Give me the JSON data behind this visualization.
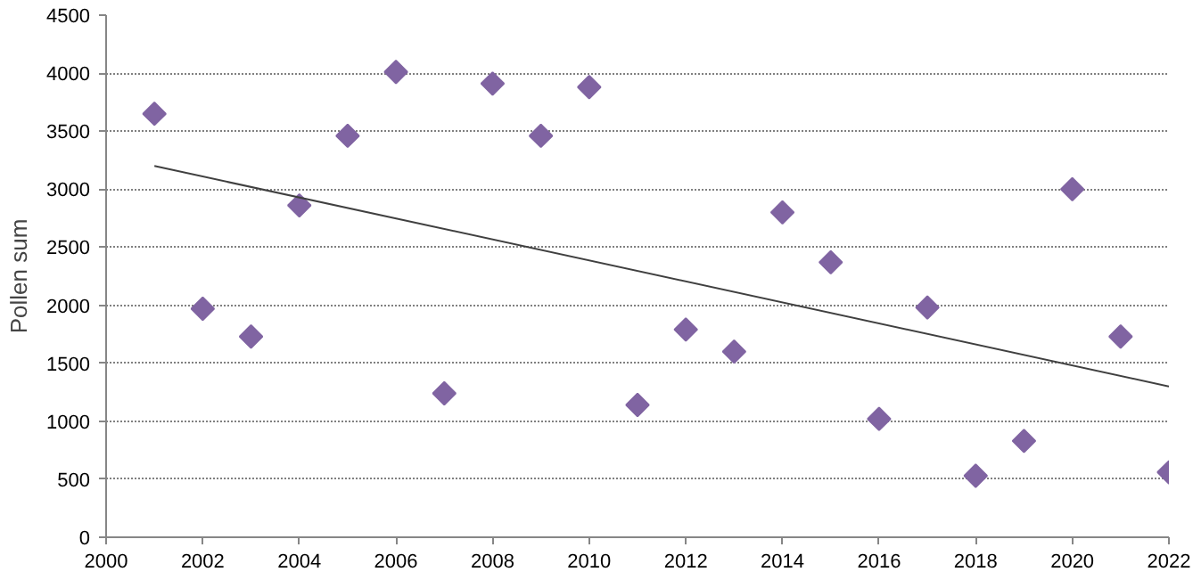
{
  "chart_data": {
    "type": "scatter",
    "ylabel": "Pollen sum",
    "marker": "diamond",
    "grid": "y",
    "xlim": [
      2000,
      2022
    ],
    "xticks": [
      2000,
      2002,
      2004,
      2006,
      2008,
      2010,
      2012,
      2014,
      2016,
      2018,
      2020,
      2022
    ],
    "ylim": [
      0,
      4500
    ],
    "yticks": [
      0,
      500,
      1000,
      1500,
      2000,
      2500,
      3000,
      3500,
      4000,
      4500
    ],
    "series": [
      {
        "color": "#8064a2",
        "x": [
          2001,
          2002,
          2003,
          2004,
          2005,
          2006,
          2007,
          2008,
          2009,
          2010,
          2011,
          2012,
          2013,
          2014,
          2015,
          2016,
          2017,
          2018,
          2019,
          2020,
          2021,
          2022
        ],
        "values": [
          3650,
          1970,
          1730,
          2860,
          3460,
          4010,
          1240,
          3910,
          3460,
          3880,
          1140,
          1790,
          1600,
          2800,
          2370,
          1020,
          1980,
          530,
          830,
          3000,
          1730,
          560
        ]
      },
      {
        "type": "line",
        "color": "#404040",
        "marker": "none",
        "x": [
          2001,
          2022
        ],
        "values": [
          3200,
          1300
        ]
      }
    ]
  }
}
